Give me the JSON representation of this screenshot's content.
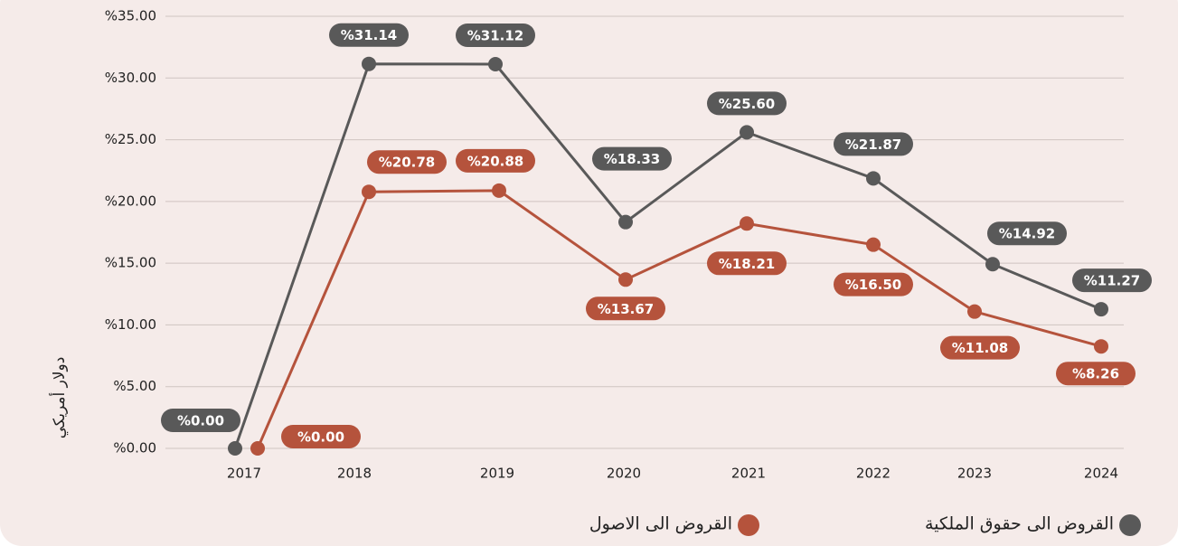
{
  "chart_data": {
    "type": "line",
    "y_label": "دولار أمريكي",
    "categories": [
      "2017",
      "2018",
      "2019",
      "2020",
      "2021",
      "2022",
      "2023",
      "2024"
    ],
    "series": [
      {
        "name": "القروض الى حقوق الملكية",
        "color": "#595959",
        "values": [
          0.0,
          31.14,
          31.12,
          18.33,
          25.6,
          21.87,
          14.92,
          11.27
        ],
        "value_labels": [
          "%0.00",
          "%31.14",
          "%31.12",
          "%18.33",
          "%25.60",
          "%21.87",
          "%14.92",
          "%11.27"
        ]
      },
      {
        "name": "القروض الى الاصول",
        "color": "#b5533c",
        "values": [
          0.0,
          20.78,
          20.88,
          13.67,
          18.21,
          16.5,
          11.08,
          8.26
        ],
        "value_labels": [
          "%0.00",
          "%20.78",
          "%20.88",
          "%13.67",
          "%18.21",
          "%16.50",
          "%11.08",
          "%8.26"
        ]
      }
    ],
    "ylim": [
      0,
      35
    ],
    "yticks": [
      {
        "value": 0,
        "label": "%0.00"
      },
      {
        "value": 5,
        "label": "%5.00"
      },
      {
        "value": 10,
        "label": "%10.00"
      },
      {
        "value": 15,
        "label": "%15.00"
      },
      {
        "value": 20,
        "label": "%20.00"
      },
      {
        "value": 25,
        "label": "%25.00"
      },
      {
        "value": 30,
        "label": "%30.00"
      },
      {
        "value": 35,
        "label": "%35.00"
      }
    ],
    "grid": true
  }
}
